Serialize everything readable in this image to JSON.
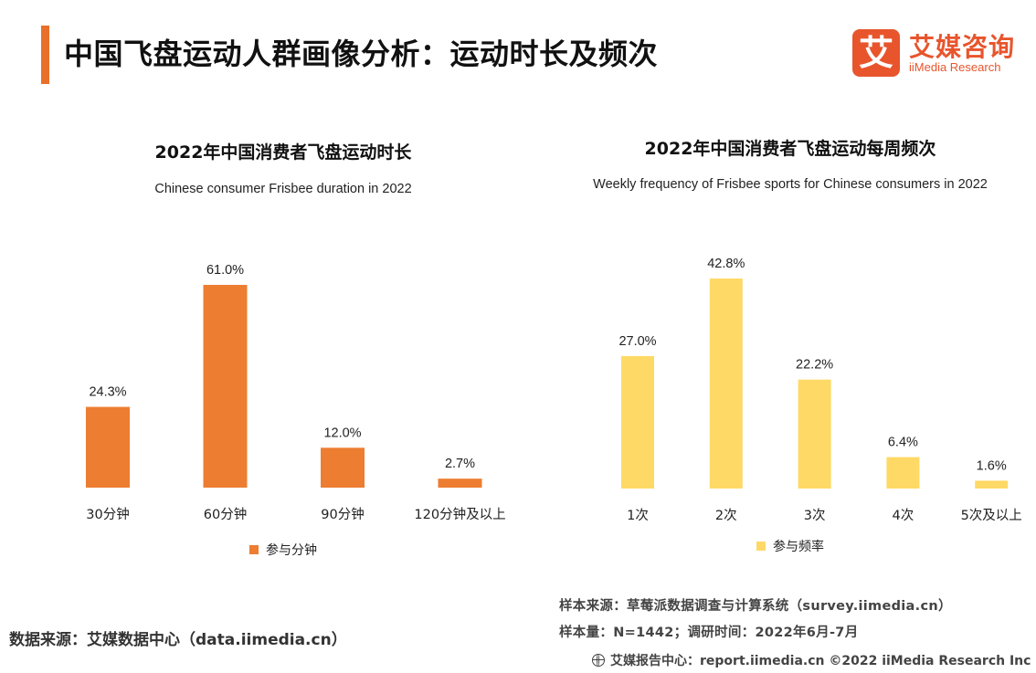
{
  "header": {
    "title": "中国飞盘运动人群画像分析：运动时长及频次",
    "logo_mark": "艾",
    "logo_cn": "艾媒咨询",
    "logo_en": "iiMedia Research",
    "accent_color": "#e8702a",
    "logo_color": "#e8552d"
  },
  "chart_data": [
    {
      "type": "bar",
      "title": "2022年中国消费者飞盘运动时长",
      "subtitle": "Chinese consumer Frisbee duration in 2022",
      "categories": [
        "30分钟",
        "60分钟",
        "90分钟",
        "120分钟及以上"
      ],
      "series": [
        {
          "name": "参与分钟",
          "values": [
            24.3,
            61.0,
            12.0,
            2.7
          ],
          "color": "#ed7d31"
        }
      ],
      "data_labels": [
        "24.3%",
        "61.0%",
        "12.0%",
        "2.7%"
      ],
      "unit": "%",
      "ylim": [
        0,
        61
      ],
      "grid": false,
      "legend_position": "bottom"
    },
    {
      "type": "bar",
      "title": "2022年中国消费者飞盘运动每周频次",
      "subtitle": "Weekly frequency of Frisbee sports for Chinese consumers in 2022",
      "categories": [
        "1次",
        "2次",
        "3次",
        "4次",
        "5次及以上"
      ],
      "series": [
        {
          "name": "参与频率",
          "values": [
            27.0,
            42.8,
            22.2,
            6.4,
            1.6
          ],
          "color": "#ffd966"
        }
      ],
      "data_labels": [
        "27.0%",
        "42.8%",
        "22.2%",
        "6.4%",
        "1.6%"
      ],
      "unit": "%",
      "ylim": [
        0,
        42.8
      ],
      "grid": false,
      "legend_position": "bottom"
    }
  ],
  "notes": {
    "data_source": "数据来源：艾媒数据中心（data.iimedia.cn）",
    "sample_source": "样本来源：草莓派数据调查与计算系统（survey.iimedia.cn）",
    "sample_size": "样本量：N=1442；调研时间：2022年6月-7月"
  },
  "footer": {
    "icon": "globe-icon",
    "text": "艾媒报告中心：report.iimedia.cn  ©2022  iiMedia Research  Inc"
  }
}
